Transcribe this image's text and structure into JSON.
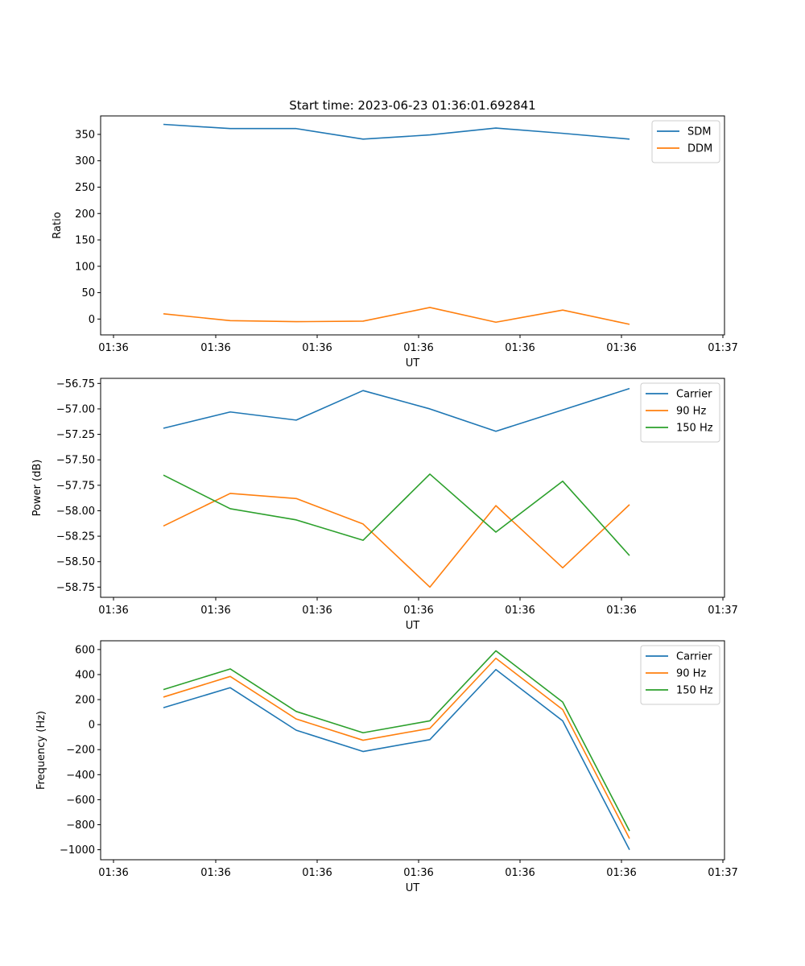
{
  "title": "Start time: 2023-06-23 01:36:01.692841",
  "chart_data": [
    {
      "type": "line",
      "xlabel": "UT",
      "ylabel": "Ratio",
      "x_tick_labels": [
        "01:36",
        "01:36",
        "01:36",
        "01:36",
        "01:36",
        "01:36",
        "01:37"
      ],
      "y_ticks": [
        0,
        50,
        100,
        150,
        200,
        250,
        300,
        350
      ],
      "ylim": [
        -30,
        385
      ],
      "legend_location": "upper right",
      "series": [
        {
          "name": "SDM",
          "color": "#1f77b4",
          "values": [
            369,
            361,
            361,
            341,
            349,
            362,
            352,
            341
          ]
        },
        {
          "name": "DDM",
          "color": "#ff7f0e",
          "values": [
            10,
            -3,
            -5,
            -4,
            22,
            -6,
            17,
            -10
          ]
        }
      ]
    },
    {
      "type": "line",
      "xlabel": "UT",
      "ylabel": "Power (dB)",
      "x_tick_labels": [
        "01:36",
        "01:36",
        "01:36",
        "01:36",
        "01:36",
        "01:36",
        "01:37"
      ],
      "y_ticks": [
        -58.75,
        -58.5,
        -58.25,
        -58.0,
        -57.75,
        -57.5,
        -57.25,
        -57.0,
        -56.75
      ],
      "y_tick_labels": [
        "−58.75",
        "−58.50",
        "−58.25",
        "−58.00",
        "−57.75",
        "−57.50",
        "−57.25",
        "−57.00",
        "−56.75"
      ],
      "ylim": [
        -58.85,
        -56.7
      ],
      "legend_location": "upper right",
      "series": [
        {
          "name": "Carrier",
          "color": "#1f77b4",
          "values": [
            -57.19,
            -57.03,
            -57.11,
            -56.82,
            -57.0,
            -57.22,
            -57.01,
            -56.8
          ]
        },
        {
          "name": "90 Hz",
          "color": "#ff7f0e",
          "values": [
            -58.15,
            -57.83,
            -57.88,
            -58.13,
            -58.75,
            -57.95,
            -58.56,
            -57.94
          ]
        },
        {
          "name": "150 Hz",
          "color": "#2ca02c",
          "values": [
            -57.65,
            -57.98,
            -58.09,
            -58.29,
            -57.64,
            -58.21,
            -57.71,
            -58.44
          ]
        }
      ]
    },
    {
      "type": "line",
      "xlabel": "UT",
      "ylabel": "Frequency (Hz)",
      "x_tick_labels": [
        "01:36",
        "01:36",
        "01:36",
        "01:36",
        "01:36",
        "01:36",
        "01:37"
      ],
      "y_ticks": [
        -1000,
        -800,
        -600,
        -400,
        -200,
        0,
        200,
        400,
        600
      ],
      "y_tick_labels": [
        "−1000",
        "−800",
        "−600",
        "−400",
        "−200",
        "0",
        "200",
        "400",
        "600"
      ],
      "ylim": [
        -1080,
        670
      ],
      "legend_location": "upper right",
      "series": [
        {
          "name": "Carrier",
          "color": "#1f77b4",
          "values": [
            135,
            295,
            -45,
            -215,
            -120,
            440,
            30,
            -1000
          ]
        },
        {
          "name": "90 Hz",
          "color": "#ff7f0e",
          "values": [
            220,
            385,
            45,
            -125,
            -30,
            530,
            120,
            -910
          ]
        },
        {
          "name": "150 Hz",
          "color": "#2ca02c",
          "values": [
            280,
            445,
            105,
            -65,
            30,
            590,
            180,
            -850
          ]
        }
      ]
    }
  ]
}
